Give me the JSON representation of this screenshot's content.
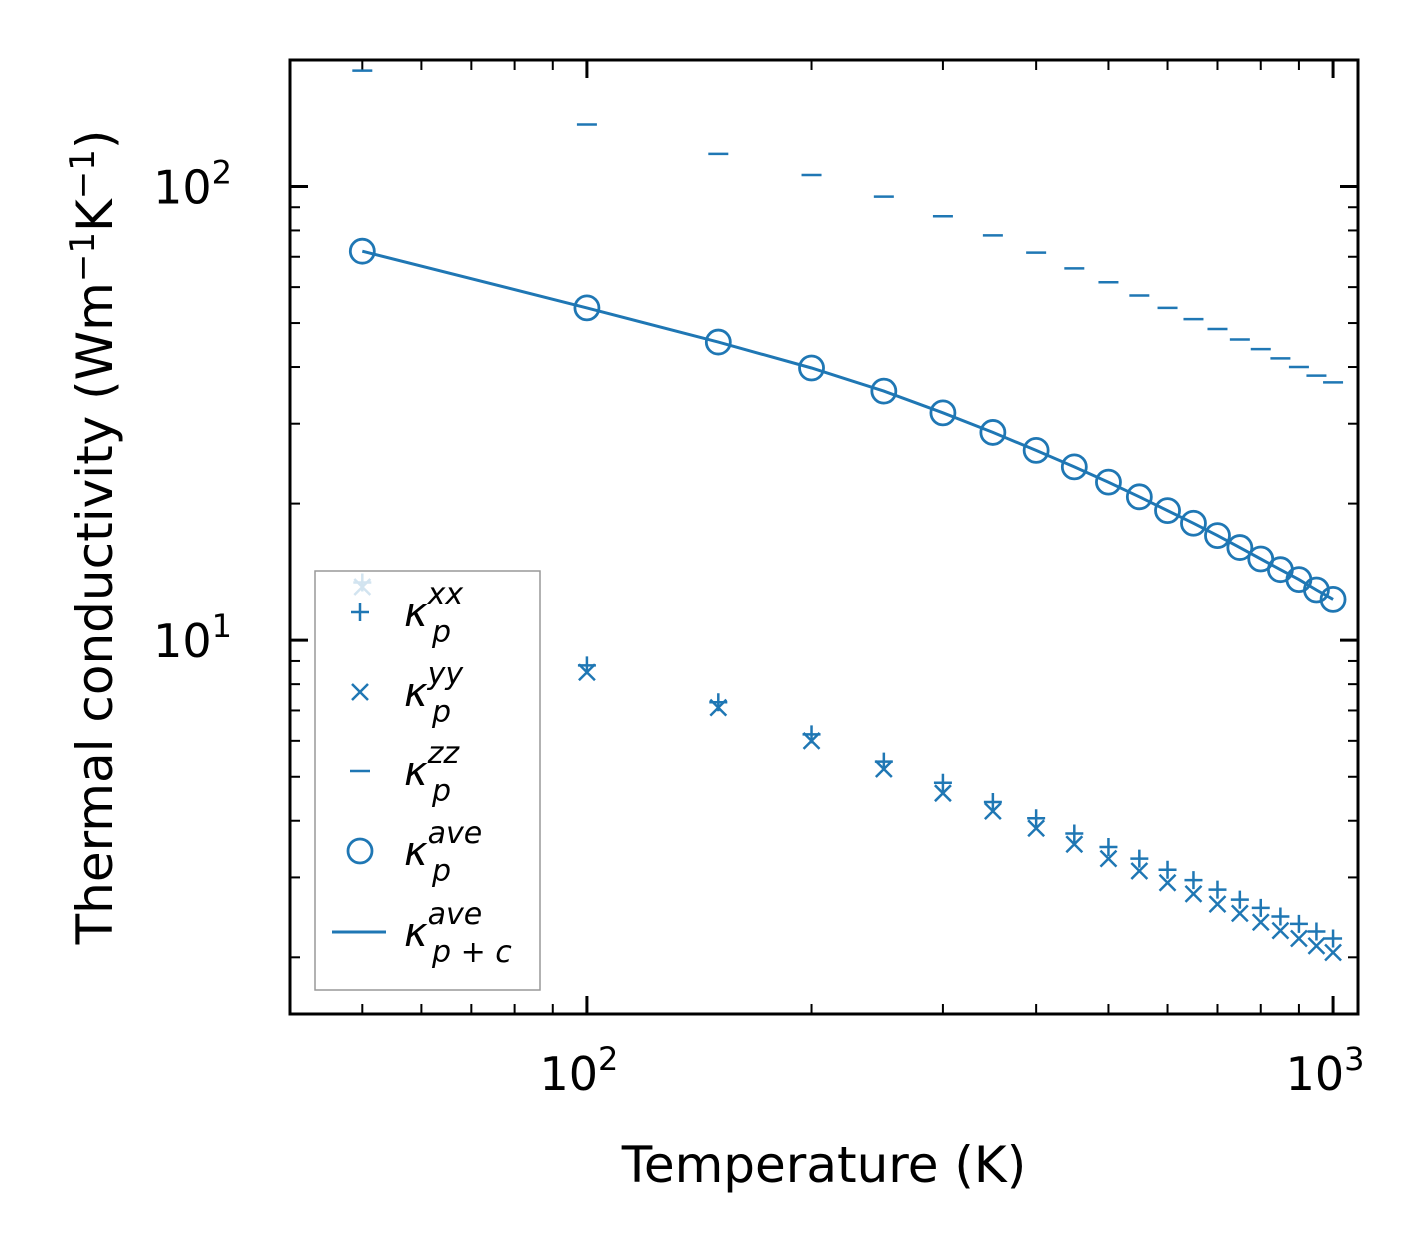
{
  "chart_data": {
    "type": "scatter",
    "xscale": "log",
    "yscale": "log",
    "xlim": [
      40,
      1080
    ],
    "ylim": [
      1.5,
      190
    ],
    "xlabel": "Temperature (K)",
    "ylabel": "Thermal conductivity (Wm",
    "ylabel_unit_parts": [
      "−1",
      "K",
      "−1",
      ")"
    ],
    "x_ticks": [
      {
        "base": "10",
        "exp": "2",
        "value": 100
      },
      {
        "base": "10",
        "exp": "3",
        "value": 1000
      }
    ],
    "y_ticks": [
      {
        "base": "10",
        "exp": "1",
        "value": 10
      },
      {
        "base": "10",
        "exp": "2",
        "value": 100
      }
    ],
    "color": "#1f77b4",
    "x": [
      50,
      100,
      150,
      200,
      250,
      300,
      350,
      400,
      450,
      500,
      550,
      600,
      650,
      700,
      750,
      800,
      850,
      900,
      950,
      1000
    ],
    "series": [
      {
        "name": "κ_p^xx",
        "marker": "plus",
        "label_base": "κ",
        "label_sub": "p",
        "label_sup": "xx",
        "values": [
          13.4,
          8.8,
          7.3,
          6.2,
          5.4,
          4.85,
          4.4,
          4.05,
          3.75,
          3.5,
          3.3,
          3.12,
          2.96,
          2.82,
          2.68,
          2.57,
          2.46,
          2.37,
          2.28,
          2.2
        ]
      },
      {
        "name": "κ_p^yy",
        "marker": "x",
        "label_base": "κ",
        "label_sub": "p",
        "label_sup": "yy",
        "values": [
          13.1,
          8.5,
          7.1,
          6.0,
          5.2,
          4.6,
          4.2,
          3.85,
          3.55,
          3.3,
          3.1,
          2.92,
          2.76,
          2.62,
          2.5,
          2.39,
          2.29,
          2.2,
          2.12,
          2.05
        ]
      },
      {
        "name": "κ_p^zz",
        "marker": "hline",
        "label_base": "κ",
        "label_sub": "p",
        "label_sup": "zz",
        "values": [
          180,
          137,
          118,
          106,
          95,
          86,
          78,
          71.5,
          66,
          61.5,
          57.5,
          54,
          51,
          48.5,
          46,
          43.8,
          41.8,
          40,
          38.3,
          37
        ]
      },
      {
        "name": "κ_p^ave",
        "marker": "circle",
        "label_base": "κ",
        "label_sub": "p",
        "label_sup": "ave",
        "values": [
          72,
          54,
          45.4,
          39.8,
          35.4,
          31.7,
          28.7,
          26.2,
          24.1,
          22.3,
          20.7,
          19.3,
          18.1,
          17.0,
          16.0,
          15.1,
          14.3,
          13.6,
          12.9,
          12.3
        ]
      },
      {
        "name": "κ_p+c^ave",
        "marker": "line",
        "label_base": "κ",
        "label_sub": "p + c",
        "label_sup": "ave",
        "values": [
          72,
          54,
          45.4,
          39.8,
          35.4,
          31.7,
          28.7,
          26.2,
          24.1,
          22.3,
          20.7,
          19.3,
          18.1,
          17.0,
          16.0,
          15.1,
          14.3,
          13.6,
          12.9,
          12.3
        ]
      }
    ],
    "legend_position": "lower-left",
    "grid": false
  }
}
